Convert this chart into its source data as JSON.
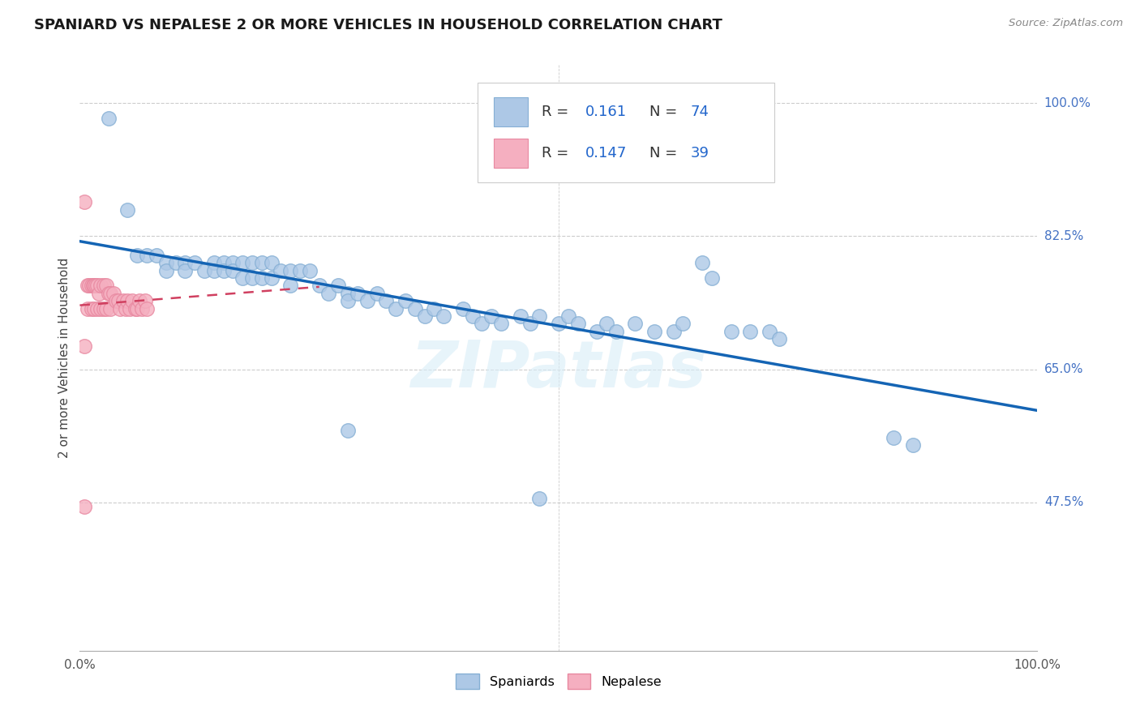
{
  "title": "SPANIARD VS NEPALESE 2 OR MORE VEHICLES IN HOUSEHOLD CORRELATION CHART",
  "source": "Source: ZipAtlas.com",
  "ylabel": "2 or more Vehicles in Household",
  "ytick_values": [
    1.0,
    0.825,
    0.65,
    0.475
  ],
  "ytick_labels": [
    "100.0%",
    "82.5%",
    "65.0%",
    "47.5%"
  ],
  "xlim": [
    0.0,
    1.0
  ],
  "ylim": [
    0.28,
    1.05
  ],
  "legend_r1": "0.161",
  "legend_n1": "74",
  "legend_r2": "0.147",
  "legend_n2": "39",
  "spaniard_color": "#adc8e6",
  "nepalese_color": "#f5afc0",
  "spaniard_edge": "#85afd4",
  "nepalese_edge": "#e888a0",
  "regression_blue": "#1464b4",
  "regression_pink": "#d04060",
  "watermark": "ZIPatlas",
  "spaniard_x": [
    0.03,
    0.05,
    0.06,
    0.07,
    0.08,
    0.09,
    0.09,
    0.1,
    0.11,
    0.11,
    0.12,
    0.13,
    0.14,
    0.14,
    0.15,
    0.15,
    0.16,
    0.16,
    0.17,
    0.17,
    0.18,
    0.18,
    0.19,
    0.19,
    0.2,
    0.2,
    0.21,
    0.22,
    0.22,
    0.23,
    0.24,
    0.25,
    0.26,
    0.27,
    0.28,
    0.28,
    0.29,
    0.3,
    0.31,
    0.32,
    0.33,
    0.34,
    0.35,
    0.36,
    0.37,
    0.38,
    0.4,
    0.41,
    0.42,
    0.43,
    0.44,
    0.46,
    0.47,
    0.48,
    0.5,
    0.51,
    0.52,
    0.54,
    0.55,
    0.56,
    0.58,
    0.6,
    0.62,
    0.63,
    0.65,
    0.66,
    0.68,
    0.7,
    0.72,
    0.73,
    0.85,
    0.87,
    0.48,
    0.28
  ],
  "spaniard_y": [
    0.98,
    0.86,
    0.8,
    0.8,
    0.8,
    0.79,
    0.78,
    0.79,
    0.79,
    0.78,
    0.79,
    0.78,
    0.79,
    0.78,
    0.79,
    0.78,
    0.79,
    0.78,
    0.79,
    0.77,
    0.79,
    0.77,
    0.79,
    0.77,
    0.79,
    0.77,
    0.78,
    0.78,
    0.76,
    0.78,
    0.78,
    0.76,
    0.75,
    0.76,
    0.75,
    0.74,
    0.75,
    0.74,
    0.75,
    0.74,
    0.73,
    0.74,
    0.73,
    0.72,
    0.73,
    0.72,
    0.73,
    0.72,
    0.71,
    0.72,
    0.71,
    0.72,
    0.71,
    0.72,
    0.71,
    0.72,
    0.71,
    0.7,
    0.71,
    0.7,
    0.71,
    0.7,
    0.7,
    0.71,
    0.79,
    0.77,
    0.7,
    0.7,
    0.7,
    0.69,
    0.56,
    0.55,
    0.48,
    0.57
  ],
  "nepalese_x": [
    0.005,
    0.005,
    0.008,
    0.008,
    0.01,
    0.012,
    0.012,
    0.014,
    0.015,
    0.015,
    0.017,
    0.018,
    0.018,
    0.02,
    0.022,
    0.022,
    0.025,
    0.025,
    0.028,
    0.028,
    0.03,
    0.032,
    0.032,
    0.035,
    0.038,
    0.04,
    0.042,
    0.045,
    0.048,
    0.05,
    0.052,
    0.055,
    0.058,
    0.06,
    0.062,
    0.065,
    0.068,
    0.07,
    0.005
  ],
  "nepalese_y": [
    0.87,
    0.68,
    0.76,
    0.73,
    0.76,
    0.76,
    0.73,
    0.76,
    0.76,
    0.73,
    0.76,
    0.76,
    0.73,
    0.75,
    0.76,
    0.73,
    0.76,
    0.73,
    0.76,
    0.73,
    0.75,
    0.75,
    0.73,
    0.75,
    0.74,
    0.74,
    0.73,
    0.74,
    0.73,
    0.74,
    0.73,
    0.74,
    0.73,
    0.73,
    0.74,
    0.73,
    0.74,
    0.73,
    0.47
  ]
}
